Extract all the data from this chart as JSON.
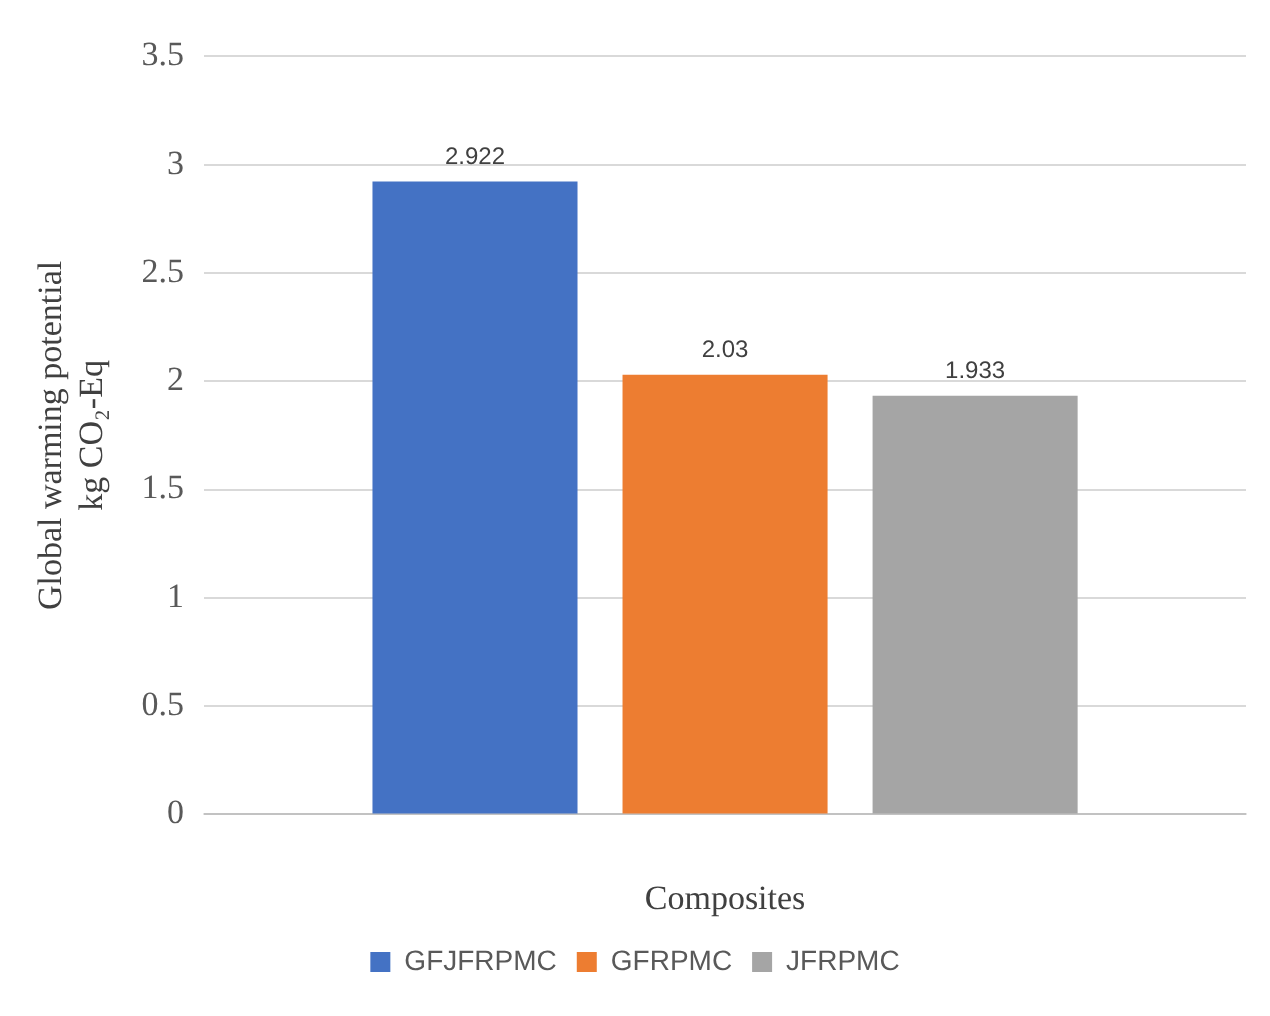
{
  "chart_data": {
    "type": "bar",
    "xlabel": "Composites",
    "ylabel": "Global warming potential\nkg CO₂-Eq",
    "categories": [
      null
    ],
    "series": [
      {
        "name": "GFJFRPMC",
        "color": "#4472c4",
        "values": [
          2.922
        ]
      },
      {
        "name": "GFRPMC",
        "color": "#ed7d31",
        "values": [
          2.03
        ]
      },
      {
        "name": "JFRPMC",
        "color": "#a5a5a5",
        "values": [
          1.933
        ]
      }
    ],
    "ylim": [
      0,
      3.5
    ],
    "yticks": [
      0,
      0.5,
      1,
      1.5,
      2,
      2.5,
      3,
      3.5
    ],
    "grid": "y",
    "legend": "bottom",
    "data_labels": true
  }
}
